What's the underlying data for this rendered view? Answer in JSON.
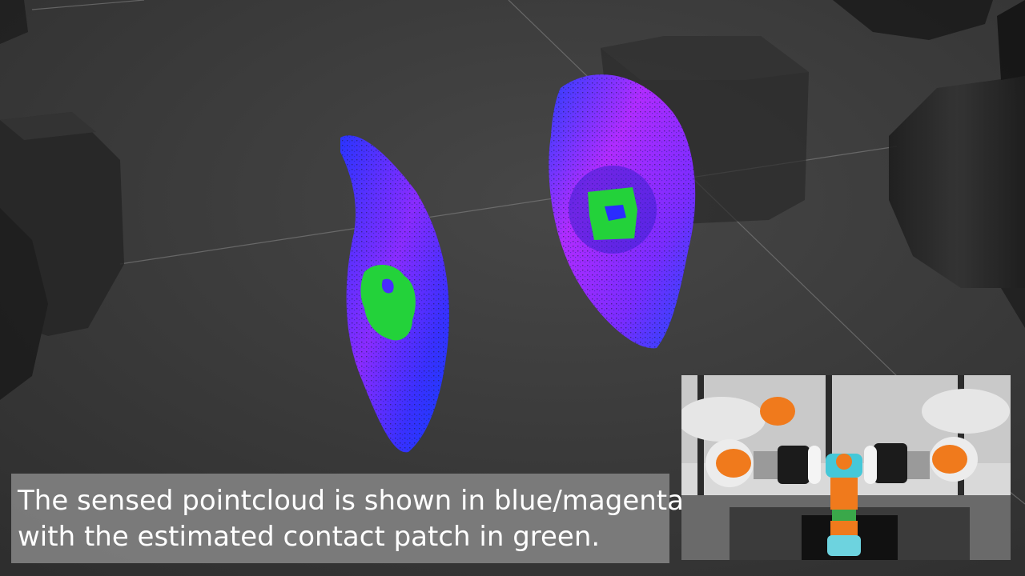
{
  "scene": {
    "background_color": "#3a3a3a",
    "pointcloud_colors": {
      "blue": "#1a2cff",
      "magenta": "#b22cff",
      "contact_patch": "#23d23a"
    },
    "robot_accent_color": "#f07a1c"
  },
  "caption": {
    "line1": "The sensed pointcloud is shown in blue/magenta",
    "line2": "with the estimated contact patch in green."
  },
  "inset": {
    "label": "camera view of dual-arm robot grasping an assembled bolt stack"
  }
}
